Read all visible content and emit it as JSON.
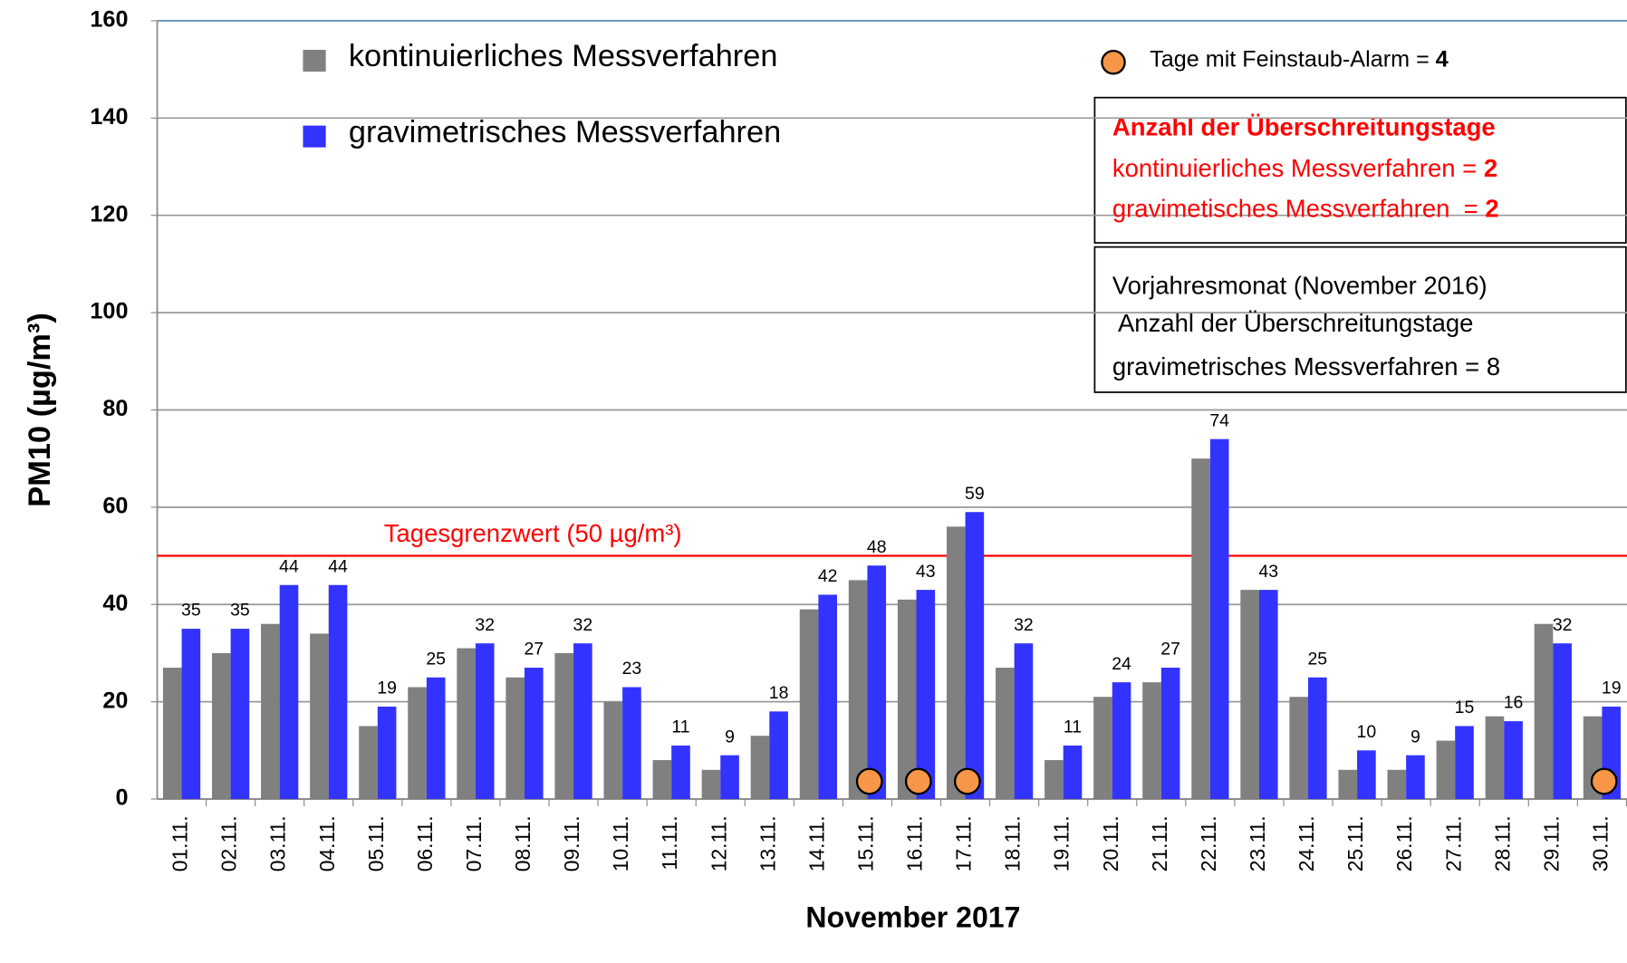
{
  "chart_data": {
    "type": "bar",
    "x_label": "November 2017",
    "y_label": "PM10 (µg/m³)",
    "categories": [
      "01.11.",
      "02.11.",
      "03.11.",
      "04.11.",
      "05.11.",
      "06.11.",
      "07.11.",
      "08.11.",
      "09.11.",
      "10.11.",
      "11.11.",
      "12.11.",
      "13.11.",
      "14.11.",
      "15.11.",
      "16.11.",
      "17.11.",
      "18.11.",
      "19.11.",
      "20.11.",
      "21.11.",
      "22.11.",
      "23.11.",
      "24.11.",
      "25.11.",
      "26.11.",
      "27.11.",
      "28.11.",
      "29.11.",
      "30.11."
    ],
    "series": [
      {
        "name": "kontinuierliches Messverfahren",
        "color": "#808080",
        "values": [
          27,
          30,
          36,
          34,
          15,
          23,
          31,
          25,
          30,
          20,
          8,
          6,
          13,
          39,
          45,
          41,
          56,
          27,
          8,
          21,
          24,
          70,
          43,
          21,
          6,
          6,
          12,
          17,
          36,
          17
        ]
      },
      {
        "name": "gravimetrisches Messverfahren",
        "color": "#3333ff",
        "labels": true,
        "values": [
          35,
          35,
          44,
          44,
          19,
          25,
          32,
          27,
          32,
          23,
          11,
          9,
          18,
          42,
          48,
          43,
          59,
          32,
          11,
          24,
          27,
          74,
          43,
          25,
          10,
          9,
          15,
          16,
          32,
          19
        ]
      }
    ],
    "ylim": [
      0,
      160
    ],
    "yticks": [
      0,
      20,
      40,
      60,
      80,
      100,
      120,
      140,
      160
    ],
    "grid": true,
    "threshold": {
      "value": 50,
      "label": "Tagesgrenzwert (50 µg/m³)",
      "color": "#ff0000"
    },
    "alarm": {
      "text": "Tage mit Feinstaub-Alarm = ",
      "count": 4,
      "color": "#f79646",
      "days": [
        "15.11.",
        "16.11.",
        "17.11.",
        "30.11."
      ]
    },
    "exceedance_box": {
      "title": "Anzahl der Überschreitungstage",
      "lines": [
        {
          "text": "kontinuierliches Messverfahren = ",
          "value": 2
        },
        {
          "text": "gravimetisches Messverfahren  = ",
          "value": 2
        }
      ]
    },
    "previous_year_box": {
      "lines": [
        "Vorjahresmonat (November 2016)",
        " Anzahl der Überschreitungstage",
        "gravimetrisches Messverfahren = 8"
      ]
    }
  }
}
